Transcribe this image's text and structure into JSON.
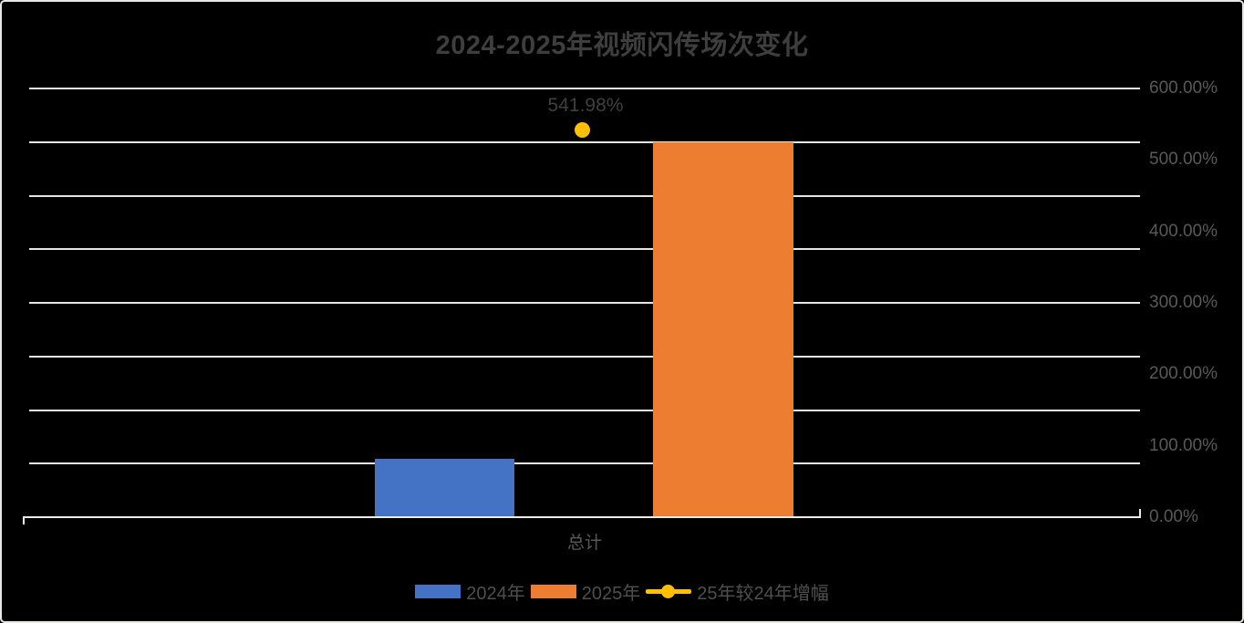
{
  "chart_data": {
    "type": "bar",
    "subtype": "combo-bar-line",
    "title": "2024-2025年视频闪传场次变化",
    "categories": [
      "总计"
    ],
    "series": [
      {
        "name": "2024年",
        "type": "bar",
        "color": "#4472C4",
        "values": [
          81.7
        ],
        "estimated": true
      },
      {
        "name": "2025年",
        "type": "bar",
        "color": "#ED7D31",
        "values": [
          524.6
        ],
        "estimated": true
      },
      {
        "name": "25年较24年增幅",
        "type": "line",
        "color": "#FFC000",
        "values": [
          541.98
        ],
        "data_labels": [
          "541.98%"
        ]
      }
    ],
    "right_axis": {
      "min": 0,
      "max": 600,
      "unit": "%",
      "ticks": [
        600,
        500,
        400,
        300,
        200,
        100,
        0
      ],
      "tick_labels": [
        "600.00%",
        "500.00%",
        "400.00%",
        "300.00%",
        "200.00%",
        "100.00%",
        "0.00%"
      ]
    },
    "gridlines": {
      "on": true,
      "step": 75,
      "count": 8
    },
    "legend_position": "bottom",
    "colors": {
      "background": "#000000",
      "grid": "#E8E6E2",
      "axis_line": "#EDEBE7",
      "title_text": "#3E3E3E",
      "axis_text": "#595959",
      "data_label_text": "#3F3F3F",
      "legend_text": "#4F4F4F"
    }
  }
}
